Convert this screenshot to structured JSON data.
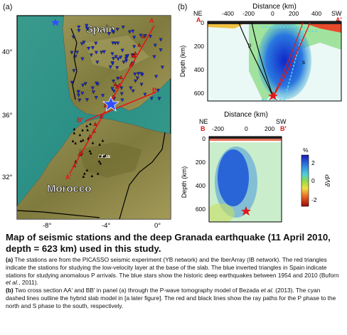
{
  "panel_a": {
    "label": "(a)",
    "region_spain": "Spain",
    "region_morocco": "Morocco",
    "lat_ticks": [
      "40°",
      "36°",
      "32°"
    ],
    "lon_ticks": [
      "-8°",
      "-4°",
      "0°"
    ],
    "point_a": "A",
    "point_a_prime": "A'",
    "point_b": "B",
    "point_b_prime": "B'",
    "atlas_label": "Atlas"
  },
  "panel_b": {
    "label": "(b)",
    "top": {
      "title": "Distance (km)",
      "left_dir": "NE",
      "right_dir": "SW",
      "left_point": "A",
      "right_point": "A'",
      "x_ticks": [
        "-400",
        "-200",
        "0",
        "200",
        "400"
      ],
      "y_label": "Depth (km)",
      "y_ticks": [
        "0",
        "200",
        "400",
        "600"
      ],
      "phase_p": "p",
      "phase_s": "s"
    },
    "bottom": {
      "title": "Distance (km)",
      "left_dir": "NE",
      "right_dir": "SW",
      "left_point": "B",
      "right_point": "B'",
      "x_ticks": [
        "-200",
        "0",
        "200"
      ],
      "y_label": "Depth (km)",
      "y_ticks": [
        "0",
        "200",
        "400",
        "600"
      ]
    },
    "colorbar": {
      "unit": "%",
      "ticks": [
        "2",
        "0",
        "-2"
      ],
      "label": "δVP"
    }
  },
  "caption": {
    "title": "Map of seismic stations and the deep Granada earthquake (11 April 2010, depth = 623 km) used in this study.",
    "para_a_tag": "(a)",
    "para_a_text": " The stations are from the PICASSO seismic experiment (YB network) and the IberArray (IB network). The red triangles indicate the stations for studying the low-velocity layer at the base of the slab. The blue inverted triangles in Spain indicate stations for studying anomalous P arrivals. The blue stars show the historic deep earthquakes between 1954 and 2010 (Buforn ",
    "para_a_etal": "et al.",
    "para_a_end": ", 2011).",
    "para_b_tag": "(b)",
    "para_b_text": " Two cross section AA' and BB' in panel (a) through the P-wave tomography model of Bezada ",
    "para_b_etal": "et al.",
    "para_b_end": " (2013). The cyan dashed lines outline the hybrid slab model in [a later figure]. The red and black lines show the ray paths for the P phase to the north and S phase to the south, respectively."
  },
  "colors": {
    "sea": "#2a8f86",
    "land": "#8c8a4a",
    "station_red": "#e01818",
    "station_blue": "#1a2ad0",
    "slab_cyan": "#55d8f0"
  }
}
